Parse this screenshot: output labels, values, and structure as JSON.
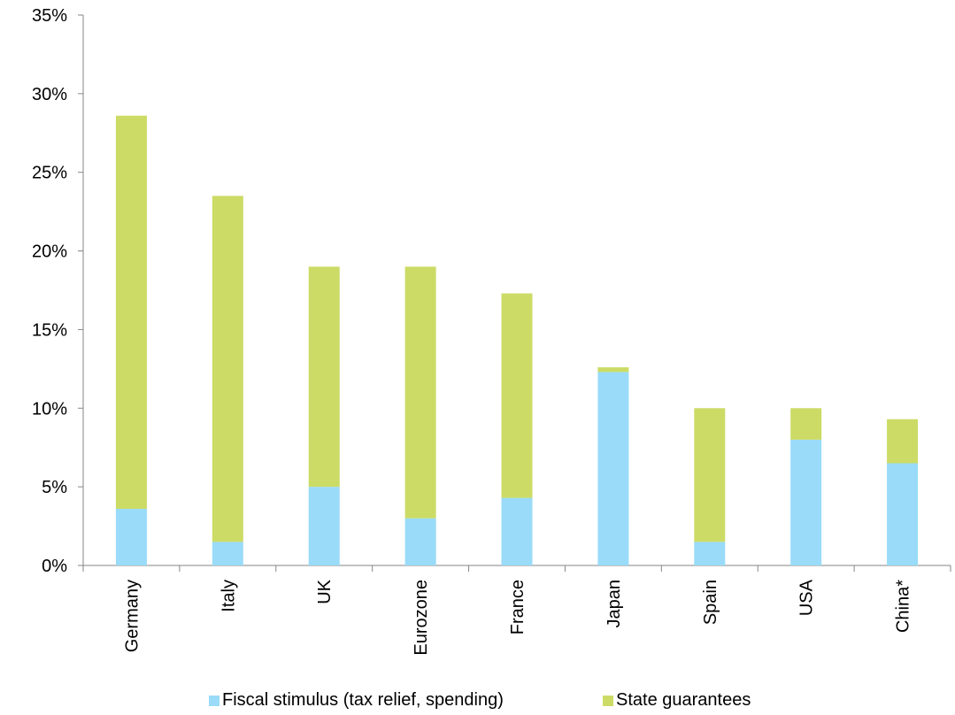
{
  "chart_data": {
    "type": "bar",
    "stacked": true,
    "categories": [
      "Germany",
      "Italy",
      "UK",
      "Eurozone",
      "France",
      "Japan",
      "Spain",
      "USA",
      "China*"
    ],
    "series": [
      {
        "name": "Fiscal stimulus (tax relief, spending)",
        "color": "#99DBF8",
        "values": [
          3.6,
          1.5,
          5.0,
          3.0,
          4.3,
          12.3,
          1.5,
          8.0,
          6.5
        ]
      },
      {
        "name": "State guarantees",
        "color": "#CCDB65",
        "values": [
          25.0,
          22.0,
          14.0,
          16.0,
          13.0,
          0.3,
          8.5,
          2.0,
          2.8
        ]
      }
    ],
    "ylim": [
      0,
      35
    ],
    "yticks": [
      "0%",
      "5%",
      "10%",
      "15%",
      "20%",
      "25%",
      "30%",
      "35%"
    ],
    "ytick_values": [
      0,
      5,
      10,
      15,
      20,
      25,
      30,
      35
    ],
    "grid": false,
    "legend_position": "bottom"
  }
}
